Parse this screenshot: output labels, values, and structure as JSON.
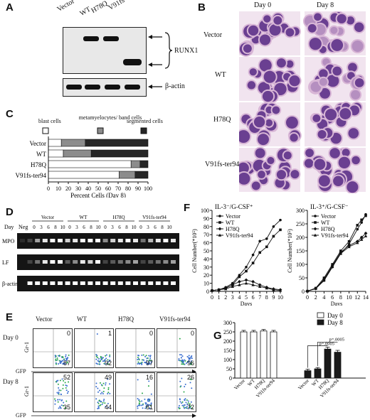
{
  "panels": {
    "A": {
      "label": "A",
      "lanes": [
        "Vector",
        "WT",
        "H78Q",
        "V91fs-ter94"
      ],
      "runx1_label": "RUNX1",
      "actin_label": "β-actin"
    },
    "B": {
      "label": "B",
      "days": [
        "Day 0",
        "Day 8"
      ],
      "rows": [
        "Vector",
        "WT",
        "H78Q",
        "V91fs-ter94"
      ]
    },
    "C": {
      "label": "C",
      "legend": [
        "blast cells",
        "metamyelocytes/ band cells",
        "segmented cells"
      ],
      "legend_colors": [
        "#ffffff",
        "#8c8c8c",
        "#262626"
      ],
      "xlabel": "Percent Cells (Day 8)"
    },
    "D": {
      "label": "D",
      "groups": [
        "Vector",
        "WT",
        "H78Q",
        "V91fs-ter94"
      ],
      "day_header": "Day",
      "neg": "Neg",
      "days": [
        "0",
        "3",
        "6",
        "8",
        "10"
      ],
      "rows": [
        "MPO",
        "LF",
        "β-actin"
      ]
    },
    "E": {
      "label": "E",
      "columns": [
        "Vector",
        "WT",
        "H78Q",
        "V91fs-ter94"
      ],
      "rows": [
        "Day 0",
        "Day 8"
      ],
      "ylabel": "Gr-1",
      "xlabel": "GFP",
      "day0_top": [
        "0",
        "1",
        "0",
        "0"
      ],
      "day0_bottom": [
        "87",
        "92",
        "97",
        "96"
      ],
      "day8_top": [
        "52",
        "49",
        "16",
        "26"
      ],
      "day8_bottom": [
        "35",
        "44",
        "81",
        "72"
      ]
    },
    "F": {
      "label": "F"
    },
    "G": {
      "label": "G"
    }
  },
  "chart_data": [
    {
      "type": "bar",
      "panel": "C",
      "categories": [
        "Vector",
        "WT",
        "H78Q",
        "V91fs-ter94"
      ],
      "series": [
        {
          "name": "blast cells",
          "values": [
            13,
            15,
            83,
            71
          ]
        },
        {
          "name": "metamyelocytes/ band cells",
          "values": [
            24,
            28,
            9,
            16
          ]
        },
        {
          "name": "segmented cells",
          "values": [
            63,
            57,
            8,
            13
          ]
        }
      ],
      "xlabel": "Percent Cells (Day 8)",
      "xlim": [
        0,
        100
      ],
      "xticks": [
        0,
        10,
        20,
        30,
        40,
        50,
        60,
        70,
        80,
        90,
        100
      ],
      "orientation": "horizontal-stacked"
    },
    {
      "type": "line",
      "panel": "F-left",
      "title": "IL-3⁻/G-CSF⁺",
      "xlabel": "Days",
      "ylabel": "Cell Number(*10⁵)",
      "x": [
        0,
        1,
        2,
        3,
        4,
        5,
        6,
        7,
        8,
        9,
        10
      ],
      "xlim": [
        0,
        10
      ],
      "ylim": [
        0,
        100
      ],
      "yticks": [
        0,
        10,
        20,
        30,
        40,
        50,
        60,
        70,
        80,
        90,
        100
      ],
      "series": [
        {
          "name": "Vector",
          "values": [
            1,
            2,
            5,
            10,
            20,
            30,
            45,
            62,
            65,
            80,
            88
          ]
        },
        {
          "name": "WT",
          "values": [
            1,
            2,
            4,
            8,
            18,
            25,
            35,
            48,
            55,
            68,
            76
          ]
        },
        {
          "name": "H78Q",
          "values": [
            1,
            2,
            4,
            8,
            12,
            14,
            12,
            8,
            5,
            3,
            2
          ]
        },
        {
          "name": "V91fs-ter94",
          "values": [
            1,
            2,
            3,
            6,
            8,
            10,
            8,
            6,
            4,
            2,
            1
          ]
        }
      ],
      "legend_position": "top-left"
    },
    {
      "type": "line",
      "panel": "F-right",
      "title": "IL-3⁺/G-CSF⁻",
      "xlabel": "Days",
      "ylabel": "Cell Number(*10⁵)",
      "x": [
        0,
        2,
        4,
        6,
        8,
        10,
        12,
        13,
        14
      ],
      "xlim": [
        0,
        14
      ],
      "ylim": [
        0,
        300
      ],
      "yticks": [
        0,
        50,
        100,
        150,
        200,
        250,
        300
      ],
      "xticks": [
        0,
        2,
        4,
        6,
        8,
        10,
        12,
        14
      ],
      "series": [
        {
          "name": "Vector",
          "values": [
            1,
            10,
            40,
            90,
            140,
            175,
            230,
            255,
            285
          ]
        },
        {
          "name": "WT",
          "values": [
            1,
            12,
            50,
            100,
            150,
            185,
            245,
            265,
            280
          ]
        },
        {
          "name": "H78Q",
          "values": [
            1,
            10,
            45,
            95,
            145,
            170,
            185,
            200,
            215
          ]
        },
        {
          "name": "V91fs-ter94",
          "values": [
            1,
            11,
            42,
            92,
            140,
            165,
            180,
            192,
            205
          ]
        }
      ],
      "legend_position": "top-left"
    },
    {
      "type": "bar",
      "panel": "G",
      "categories": [
        "Vector",
        "WT",
        "H78Q",
        "V91fs-ter94"
      ],
      "series": [
        {
          "name": "Day 0",
          "values": [
            250,
            250,
            255,
            250
          ],
          "errors": [
            8,
            8,
            8,
            8
          ]
        },
        {
          "name": "Day 8",
          "values": [
            40,
            50,
            157,
            140
          ],
          "errors": [
            8,
            7,
            10,
            10
          ]
        }
      ],
      "ylim": [
        0,
        300
      ],
      "yticks": [
        0,
        50,
        100,
        150,
        200,
        250,
        300
      ],
      "annotations": [
        "p=.0005",
        "p=.0005"
      ],
      "legend_position": "top-right"
    }
  ]
}
